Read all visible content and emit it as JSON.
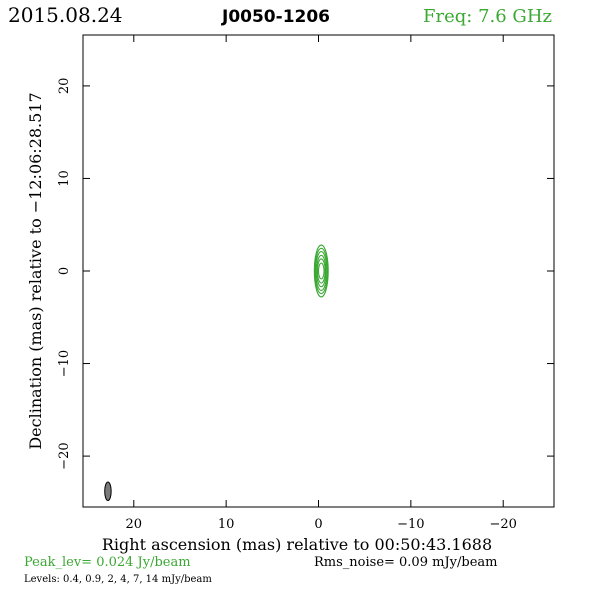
{
  "header": {
    "date": "2015.08.24",
    "source": "J0050-1206",
    "freq": "Freq: 7.6 GHz"
  },
  "footer": {
    "peak": "Peak_lev=  0.024 Jy/beam",
    "rms": "Rms_noise= 0.09 mJy/beam",
    "levels": "Levels: 0.4, 0.9,   2,   4,   7,  14 mJy/beam"
  },
  "colors": {
    "peak_text": "#3aa832",
    "freq_text": "#3aa832",
    "contour": "#3aa832",
    "beam_fill": "#7a7a7a",
    "axis": "#000000"
  },
  "chart_data": {
    "type": "contour",
    "xlabel": "Right ascension (mas) relative to 00:50:43.1688",
    "ylabel": "Declination (mas) relative to −12:06:28.517",
    "xlim": [
      25.5,
      -25.5
    ],
    "ylim": [
      -25.5,
      25.5
    ],
    "xticks": [
      20,
      10,
      0,
      -10,
      -20
    ],
    "yticks": [
      20,
      10,
      0,
      -10,
      -20
    ],
    "xtick_labels": [
      "20",
      "10",
      "0",
      "−10",
      "−20"
    ],
    "ytick_labels": [
      "20",
      "10",
      "0",
      "−10",
      "−20"
    ],
    "levels_mJy": [
      0.4,
      0.9,
      2,
      4,
      7,
      14
    ],
    "contours": [
      {
        "cx": -0.3,
        "cy": 0.0,
        "rx": 0.75,
        "ry": 2.8
      },
      {
        "cx": -0.3,
        "cy": 0.0,
        "rx": 0.68,
        "ry": 2.45
      },
      {
        "cx": -0.3,
        "cy": 0.0,
        "rx": 0.6,
        "ry": 2.1
      },
      {
        "cx": -0.3,
        "cy": 0.0,
        "rx": 0.5,
        "ry": 1.7
      },
      {
        "cx": -0.3,
        "cy": 0.0,
        "rx": 0.42,
        "ry": 1.3
      },
      {
        "cx": -0.3,
        "cy": 0.0,
        "rx": 0.3,
        "ry": 0.85
      }
    ],
    "beam": {
      "x": 22.8,
      "y": -23.8,
      "major": 1.0,
      "minor": 0.35,
      "pa_deg": 0
    }
  }
}
